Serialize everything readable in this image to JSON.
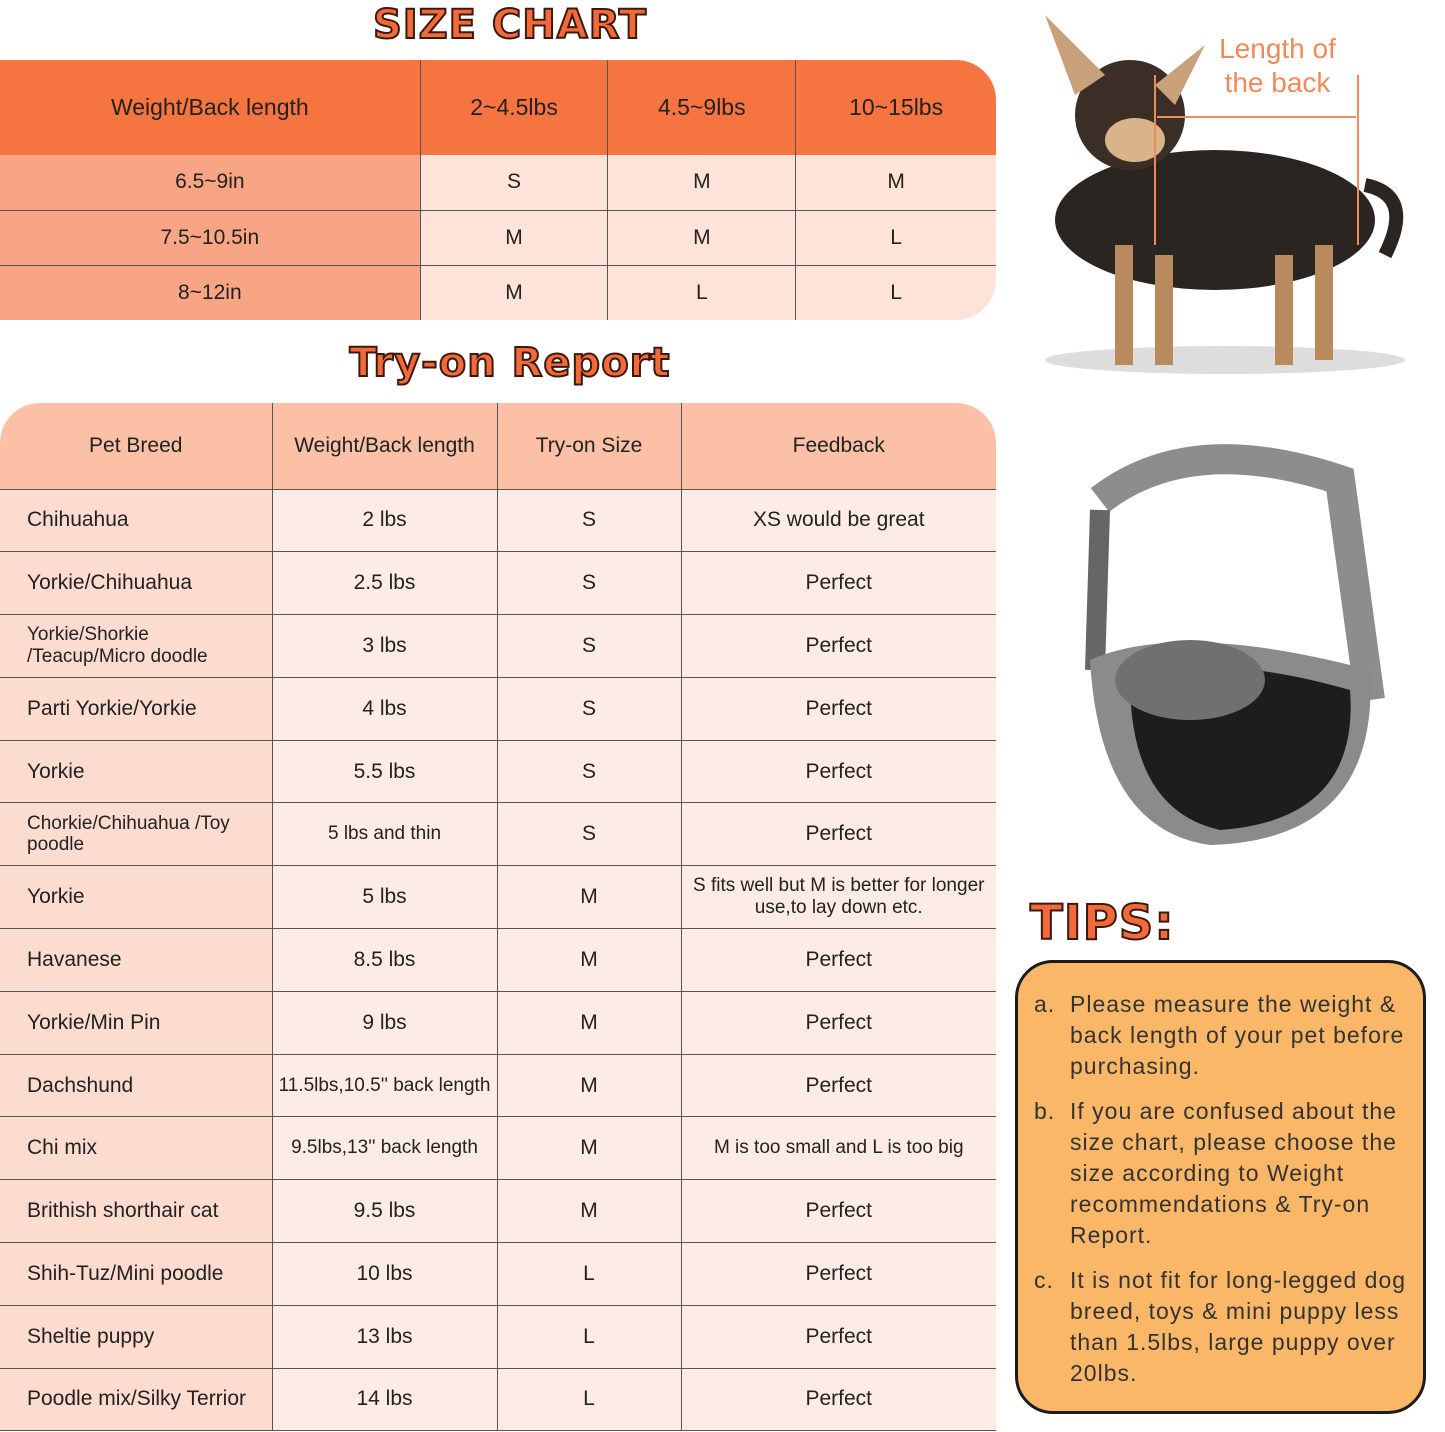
{
  "size_chart": {
    "title": "SIZE CHART",
    "headers": [
      "Weight/Back length",
      "2~4.5lbs",
      "4.5~9lbs",
      "10~15lbs"
    ],
    "rows": [
      [
        "6.5~9in",
        "S",
        "M",
        "M"
      ],
      [
        "7.5~10.5in",
        "M",
        "M",
        "L"
      ],
      [
        "8~12in",
        "M",
        "L",
        "L"
      ]
    ]
  },
  "tryon": {
    "title": "Try-on Report",
    "headers": [
      "Pet Breed",
      "Weight/Back length",
      "Try-on Size",
      "Feedback"
    ],
    "rows": [
      [
        "Chihuahua",
        "2 lbs",
        "S",
        "XS would be great"
      ],
      [
        "Yorkie/Chihuahua",
        "2.5 lbs",
        "S",
        "Perfect"
      ],
      [
        "Yorkie/Shorkie /Teacup/Micro doodle",
        "3 lbs",
        "S",
        "Perfect"
      ],
      [
        "Parti Yorkie/Yorkie",
        "4 lbs",
        "S",
        "Perfect"
      ],
      [
        "Yorkie",
        "5.5 lbs",
        "S",
        "Perfect"
      ],
      [
        "Chorkie/Chihuahua /Toy poodle",
        "5 lbs and thin",
        "S",
        "Perfect"
      ],
      [
        "Yorkie",
        "5 lbs",
        "M",
        "S fits well but M is better for longer use,to lay down etc."
      ],
      [
        "Havanese",
        "8.5 lbs",
        "M",
        "Perfect"
      ],
      [
        "Yorkie/Min Pin",
        "9 lbs",
        "M",
        "Perfect"
      ],
      [
        "Dachshund",
        "11.5lbs,10.5'' back length",
        "M",
        "Perfect"
      ],
      [
        "Chi mix",
        "9.5lbs,13'' back length",
        "M",
        "M is too small and L is too big"
      ],
      [
        "Brithish shorthair cat",
        "9.5 lbs",
        "M",
        "Perfect"
      ],
      [
        "Shih-Tuz/Mini poodle",
        "10 lbs",
        "L",
        "Perfect"
      ],
      [
        "Sheltie puppy",
        "13 lbs",
        "L",
        "Perfect"
      ],
      [
        "Poodle mix/Silky Terrior",
        "14 lbs",
        "L",
        "Perfect"
      ]
    ]
  },
  "dog_label": "Length of the back",
  "tips": {
    "title": "TIPS:",
    "items": [
      {
        "letter": "a.",
        "text": "Please measure the weight & back length of your pet before purchasing."
      },
      {
        "letter": "b.",
        "text": "If you are confused about the size chart, please choose the size according to Weight recommendations & Try-on Report."
      },
      {
        "letter": "c.",
        "text": "It is not fit for long-legged dog breed, toys & mini puppy less than 1.5lbs, large puppy over 20lbs."
      }
    ]
  },
  "colors": {
    "header_orange": "#f6743f",
    "accent": "#f26a3a",
    "tips_bg": "#fbb768"
  }
}
